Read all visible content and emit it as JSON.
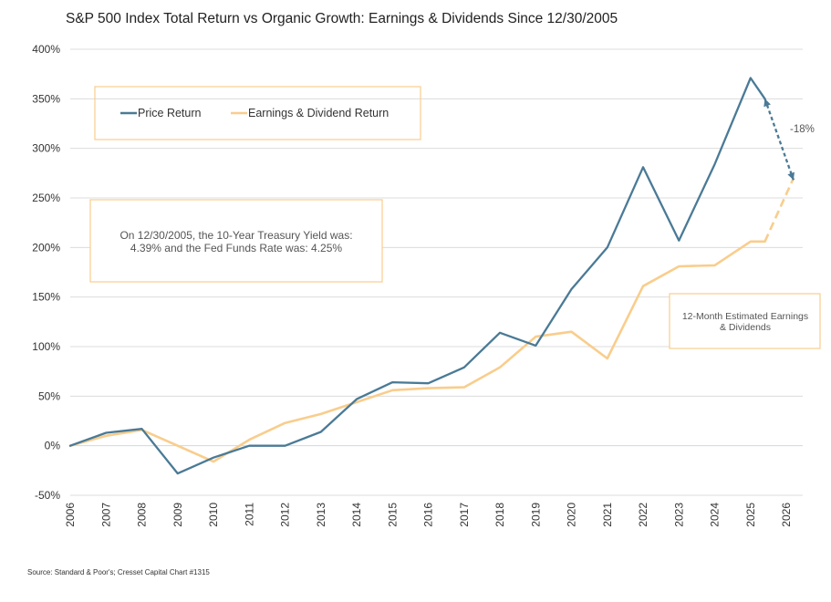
{
  "chart_data": {
    "type": "line",
    "title": "S&P 500 Index Total Return vs Organic Growth: Earnings & Dividends Since 12/30/2005",
    "x": [
      "2006",
      "2007",
      "2008",
      "2009",
      "2010",
      "2011",
      "2012",
      "2013",
      "2014",
      "2015",
      "2016",
      "2017",
      "2018",
      "2019",
      "2020",
      "2021",
      "2022",
      "2023",
      "2024",
      "2025",
      "2026"
    ],
    "ylim": [
      -50,
      400
    ],
    "yticks": [
      -50,
      0,
      50,
      100,
      150,
      200,
      250,
      300,
      350,
      400
    ],
    "ytick_labels": [
      "-50%",
      "0%",
      "50%",
      "100%",
      "150%",
      "200%",
      "250%",
      "300%",
      "350%",
      "400%"
    ],
    "grid": "horizontal",
    "legend_position": "top-left",
    "series": [
      {
        "name": "Price Return",
        "color": "#4a7a96",
        "points": [
          [
            2006,
            0
          ],
          [
            2007,
            13
          ],
          [
            2008,
            17
          ],
          [
            2009,
            -28
          ],
          [
            2010,
            -12
          ],
          [
            2011,
            0
          ],
          [
            2012,
            0
          ],
          [
            2013,
            14
          ],
          [
            2014,
            47
          ],
          [
            2015,
            64
          ],
          [
            2016,
            63
          ],
          [
            2017,
            79
          ],
          [
            2018,
            114
          ],
          [
            2019,
            101
          ],
          [
            2020,
            158
          ],
          [
            2021,
            200
          ],
          [
            2022,
            281
          ],
          [
            2023,
            207
          ],
          [
            2024,
            284
          ],
          [
            2025,
            371
          ],
          [
            2025.4,
            350
          ]
        ],
        "projection": [
          [
            2025.4,
            350
          ],
          [
            2026.2,
            268
          ]
        ]
      },
      {
        "name": "Earnings & Dividend Return",
        "color": "#f9cd8c",
        "points": [
          [
            2006,
            0
          ],
          [
            2007,
            10
          ],
          [
            2008,
            16
          ],
          [
            2009,
            0
          ],
          [
            2010,
            -16
          ],
          [
            2011,
            6
          ],
          [
            2012,
            23
          ],
          [
            2013,
            32
          ],
          [
            2014,
            44
          ],
          [
            2015,
            56
          ],
          [
            2016,
            58
          ],
          [
            2017,
            59
          ],
          [
            2018,
            79
          ],
          [
            2019,
            110
          ],
          [
            2020,
            115
          ],
          [
            2021,
            88
          ],
          [
            2022,
            161
          ],
          [
            2023,
            181
          ],
          [
            2024,
            182
          ],
          [
            2025,
            206
          ],
          [
            2025.4,
            206
          ]
        ],
        "projection": [
          [
            2025.4,
            206
          ],
          [
            2026.2,
            270
          ]
        ]
      }
    ],
    "annotations": {
      "drop": "-18%",
      "rates": [
        "On 12/30/2005, the 10-Year Treasury Yield was:",
        "4.39% and the Fed Funds Rate was: 4.25%"
      ],
      "estimate": [
        "12-Month Estimated Earnings",
        "& Dividends"
      ]
    }
  },
  "source": "Source: Standard & Poor's; Cresset Capital Chart #1315"
}
